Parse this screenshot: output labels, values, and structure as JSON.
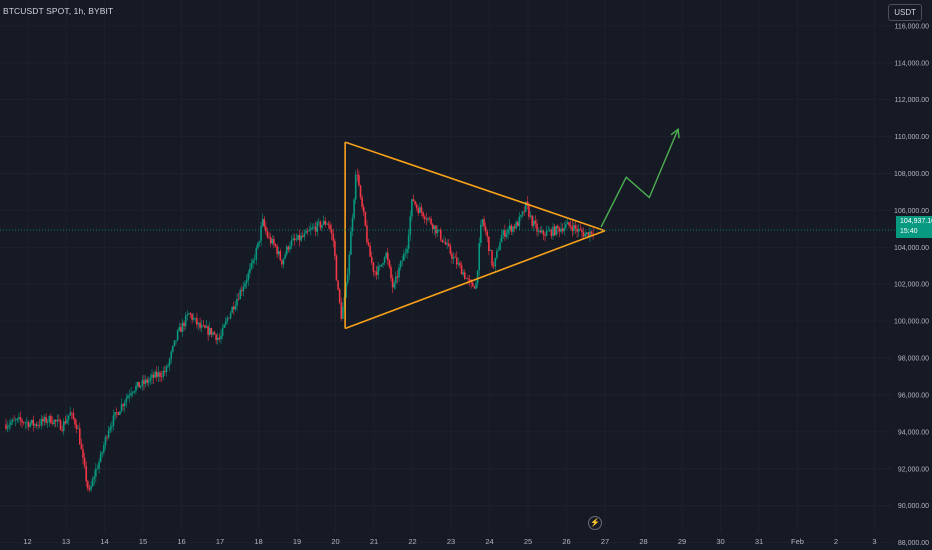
{
  "header": {
    "symbol": "BTCUSDT SPOT, 1h, BYBIT"
  },
  "currency_button": {
    "label": "USDT"
  },
  "last_price": {
    "value": "104,937.10",
    "countdown": "15:40"
  },
  "colors": {
    "background": "#161a25",
    "up": "#089981",
    "down": "#f23645",
    "pattern": "#f7a11a",
    "projection": "#4caf50"
  },
  "chart_data": {
    "type": "candlestick",
    "title": "",
    "xlabel": "",
    "ylabel": "",
    "ylim": [
      87600,
      117400
    ],
    "y_ticks": [
      88000,
      90000,
      92000,
      94000,
      96000,
      98000,
      100000,
      102000,
      104000,
      106000,
      108000,
      110000,
      112000,
      114000,
      116000
    ],
    "y_tick_labels": [
      "88,000.00",
      "90,000.00",
      "92,000.00",
      "94,000.00",
      "96,000.00",
      "98,000.00",
      "100,000.00",
      "102,000.00",
      "104,000.00",
      "106,000.00",
      "108,000.00",
      "110,000.00",
      "112,000.00",
      "114,000.00",
      "116,000.00"
    ],
    "x_ticks": [
      {
        "label": "12",
        "day": 12
      },
      {
        "label": "13",
        "day": 13
      },
      {
        "label": "14",
        "day": 14
      },
      {
        "label": "15",
        "day": 15
      },
      {
        "label": "16",
        "day": 16
      },
      {
        "label": "17",
        "day": 17
      },
      {
        "label": "18",
        "day": 18
      },
      {
        "label": "19",
        "day": 19
      },
      {
        "label": "20",
        "day": 20
      },
      {
        "label": "21",
        "day": 21
      },
      {
        "label": "22",
        "day": 22
      },
      {
        "label": "23",
        "day": 23
      },
      {
        "label": "24",
        "day": 24
      },
      {
        "label": "25",
        "day": 25
      },
      {
        "label": "26",
        "day": 26
      },
      {
        "label": "27",
        "day": 27
      },
      {
        "label": "28",
        "day": 28
      },
      {
        "label": "29",
        "day": 29
      },
      {
        "label": "30",
        "day": 30
      },
      {
        "label": "31",
        "day": 31
      },
      {
        "label": "Feb",
        "day": 32
      },
      {
        "label": "2",
        "day": 33
      },
      {
        "label": "3",
        "day": 34
      }
    ],
    "price_path": [
      [
        11.4,
        94400
      ],
      [
        11.8,
        94600
      ],
      [
        12.2,
        94400
      ],
      [
        12.6,
        94700
      ],
      [
        12.9,
        94300
      ],
      [
        13.1,
        95000
      ],
      [
        13.3,
        94300
      ],
      [
        13.45,
        92300
      ],
      [
        13.6,
        90600
      ],
      [
        13.75,
        91800
      ],
      [
        13.9,
        92600
      ],
      [
        14.1,
        94200
      ],
      [
        14.4,
        95300
      ],
      [
        14.7,
        96300
      ],
      [
        15.0,
        96600
      ],
      [
        15.3,
        97000
      ],
      [
        15.6,
        97300
      ],
      [
        15.9,
        99300
      ],
      [
        16.2,
        100400
      ],
      [
        16.5,
        99600
      ],
      [
        16.8,
        99400
      ],
      [
        17.0,
        99000
      ],
      [
        17.2,
        100200
      ],
      [
        17.5,
        101500
      ],
      [
        17.8,
        102800
      ],
      [
        18.0,
        104200
      ],
      [
        18.1,
        105400
      ],
      [
        18.25,
        104500
      ],
      [
        18.45,
        104000
      ],
      [
        18.6,
        103200
      ],
      [
        18.8,
        104200
      ],
      [
        19.0,
        104400
      ],
      [
        19.2,
        104600
      ],
      [
        19.4,
        105000
      ],
      [
        19.6,
        105200
      ],
      [
        19.8,
        105400
      ],
      [
        19.95,
        104300
      ],
      [
        20.05,
        101800
      ],
      [
        20.15,
        100300
      ],
      [
        20.25,
        101300
      ],
      [
        20.35,
        103500
      ],
      [
        20.45,
        106000
      ],
      [
        20.55,
        108400
      ],
      [
        20.65,
        106500
      ],
      [
        20.75,
        105500
      ],
      [
        20.85,
        103900
      ],
      [
        21.0,
        102700
      ],
      [
        21.15,
        102800
      ],
      [
        21.3,
        103800
      ],
      [
        21.5,
        101700
      ],
      [
        21.65,
        102800
      ],
      [
        21.85,
        104000
      ],
      [
        22.0,
        106700
      ],
      [
        22.1,
        106200
      ],
      [
        22.3,
        105800
      ],
      [
        22.5,
        105300
      ],
      [
        22.7,
        104700
      ],
      [
        22.9,
        104000
      ],
      [
        23.1,
        103300
      ],
      [
        23.3,
        102700
      ],
      [
        23.5,
        101900
      ],
      [
        23.65,
        102000
      ],
      [
        23.8,
        105600
      ],
      [
        23.95,
        104400
      ],
      [
        24.1,
        102800
      ],
      [
        24.3,
        104600
      ],
      [
        24.5,
        105000
      ],
      [
        24.7,
        105200
      ],
      [
        24.85,
        105700
      ],
      [
        24.95,
        106300
      ],
      [
        25.1,
        105400
      ],
      [
        25.3,
        104700
      ],
      [
        25.5,
        104800
      ],
      [
        25.7,
        104900
      ],
      [
        25.9,
        105100
      ],
      [
        26.1,
        105200
      ],
      [
        26.3,
        104900
      ],
      [
        26.5,
        104700
      ],
      [
        26.7,
        104937
      ]
    ],
    "triangle": {
      "upper": [
        [
          20.25,
          109700
        ],
        [
          27.0,
          104900
        ]
      ],
      "lower": [
        [
          20.25,
          99600
        ],
        [
          27.0,
          104900
        ]
      ]
    },
    "projection": [
      [
        26.9,
        105100
      ],
      [
        27.55,
        107800
      ],
      [
        28.15,
        106700
      ],
      [
        28.9,
        110400
      ]
    ],
    "last_price_value": 104937.1
  }
}
